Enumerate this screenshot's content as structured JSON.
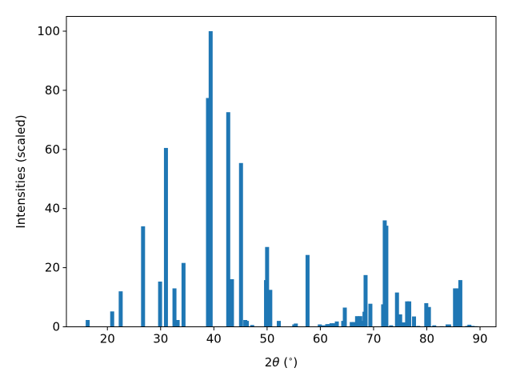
{
  "chart_data": {
    "type": "bar",
    "title": "",
    "xlabel_prefix": "2",
    "xlabel_symbol": "θ",
    "xlabel_unit": " (",
    "xlabel_degree": "∘",
    "xlabel_close": ")",
    "ylabel": "Intensities (scaled)",
    "xlim": [
      12.3,
      93.0
    ],
    "ylim": [
      0,
      105
    ],
    "bar_width": 0.75,
    "xticks": [
      20,
      30,
      40,
      50,
      60,
      70,
      80,
      90
    ],
    "yticks": [
      0,
      20,
      40,
      60,
      80,
      100
    ],
    "grid": false,
    "legend": "none",
    "bar_color": "#1f77b4",
    "series": [
      {
        "x": [
          16.3,
          20.9,
          22.5,
          26.7,
          29.9,
          31.0,
          32.6,
          33.2,
          34.3,
          38.9,
          39.4,
          42.7,
          43.4,
          45.1,
          45.9,
          46.2,
          47.2,
          49.8,
          50.0,
          50.6,
          52.2,
          55.1,
          55.4,
          57.6,
          59.9,
          60.6,
          61.3,
          61.7,
          62.1,
          62.6,
          63.1,
          64.3,
          64.6,
          65.9,
          66.3,
          66.9,
          67.5,
          67.8,
          68.3,
          68.5,
          69.4,
          71.8,
          72.1,
          72.4,
          73.3,
          74.4,
          75.0,
          75.6,
          76.3,
          76.7,
          77.6,
          78.4,
          79.9,
          80.4,
          81.4,
          82.8,
          83.9,
          84.2,
          85.3,
          85.7,
          86.3,
          87.6,
          88.0,
          88.6,
          89.2
        ],
        "values": [
          2.3,
          5.2,
          12.0,
          34.0,
          15.3,
          60.5,
          13.0,
          2.3,
          21.6,
          77.4,
          100.0,
          72.6,
          16.1,
          55.4,
          2.3,
          2.0,
          0.6,
          15.8,
          27.0,
          12.5,
          2.0,
          0.8,
          1.1,
          24.3,
          0.8,
          0.5,
          0.9,
          0.9,
          1.2,
          1.2,
          1.8,
          2.0,
          6.5,
          1.6,
          1.6,
          3.6,
          3.6,
          2.0,
          5.1,
          17.5,
          7.8,
          7.6,
          36.0,
          34.2,
          0.5,
          11.6,
          4.2,
          1.5,
          8.6,
          8.6,
          3.5,
          0.3,
          8.0,
          6.7,
          0.5,
          0.2,
          0.8,
          0.8,
          13.0,
          13.0,
          15.8,
          0.3,
          0.7,
          0.3,
          0.2
        ]
      }
    ]
  }
}
